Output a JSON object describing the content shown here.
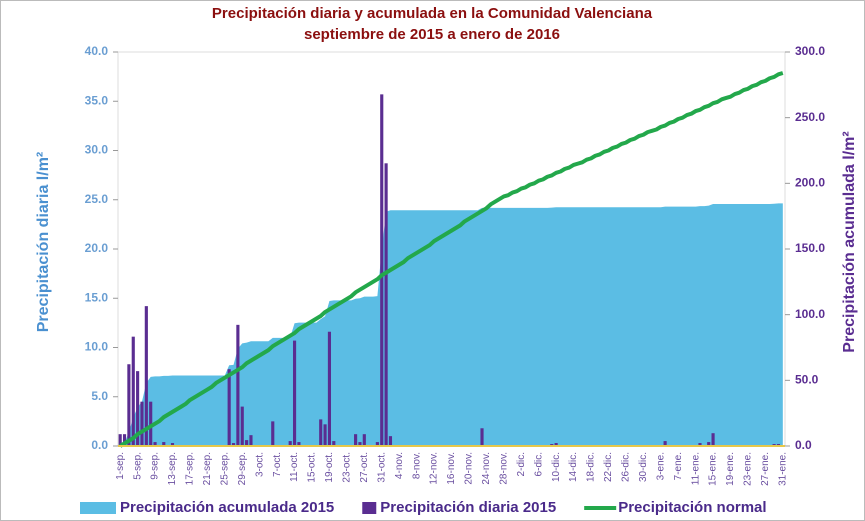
{
  "chart_data": {
    "type": "bar",
    "title": "Precipitación diaria y acumulada en la Comunidad Valenciana",
    "subtitle": "septiembre de 2015 a enero de 2016",
    "ylabel": "Precipitación diaria l/m²",
    "y2label": "Precipitación acumulada l/m²",
    "ylim": [
      0,
      40
    ],
    "yticks": [
      {
        "value": 0,
        "label": "0.0"
      },
      {
        "value": 5,
        "label": "5.0"
      },
      {
        "value": 10,
        "label": "10.0"
      },
      {
        "value": 15,
        "label": "15.0"
      },
      {
        "value": 20,
        "label": "20.0"
      },
      {
        "value": 25,
        "label": "25.0"
      },
      {
        "value": 30,
        "label": "30.0"
      },
      {
        "value": 35,
        "label": "35.0"
      },
      {
        "value": 40,
        "label": "40.0"
      }
    ],
    "y2lim": [
      0,
      300
    ],
    "y2ticks": [
      {
        "value": 0,
        "label": "0.0"
      },
      {
        "value": 50,
        "label": "50.0"
      },
      {
        "value": 100,
        "label": "100.0"
      },
      {
        "value": 150,
        "label": "150.0"
      },
      {
        "value": 200,
        "label": "200.0"
      },
      {
        "value": 250,
        "label": "250.0"
      },
      {
        "value": 300,
        "label": "300.0"
      }
    ],
    "legend": "bottom",
    "categories": [
      "1-sep.",
      null,
      null,
      null,
      "5-sep.",
      null,
      null,
      null,
      "9-sep.",
      null,
      null,
      null,
      "13-sep.",
      null,
      null,
      null,
      "17-sep.",
      null,
      null,
      null,
      "21-sep.",
      null,
      null,
      null,
      "25-sep.",
      null,
      null,
      null,
      "29-sep.",
      null,
      null,
      null,
      "3-oct.",
      null,
      null,
      null,
      "7-oct.",
      null,
      null,
      null,
      "11-oct.",
      null,
      null,
      null,
      "15-oct.",
      null,
      null,
      null,
      "19-oct.",
      null,
      null,
      null,
      "23-oct.",
      null,
      null,
      null,
      "27-oct.",
      null,
      null,
      null,
      "31-oct.",
      null,
      null,
      null,
      "4-nov.",
      null,
      null,
      null,
      "8-nov.",
      null,
      null,
      null,
      "12-nov.",
      null,
      null,
      null,
      "16-nov.",
      null,
      null,
      null,
      "20-nov.",
      null,
      null,
      null,
      "24-nov.",
      null,
      null,
      null,
      "28-nov.",
      null,
      null,
      null,
      "2-dic.",
      null,
      null,
      null,
      "6-dic.",
      null,
      null,
      null,
      "10-dic.",
      null,
      null,
      null,
      "14-dic.",
      null,
      null,
      null,
      "18-dic.",
      null,
      null,
      null,
      "22-dic.",
      null,
      null,
      null,
      "26-dic.",
      null,
      null,
      null,
      "30-dic.",
      null,
      null,
      null,
      "3-ene.",
      null,
      null,
      null,
      "7-ene.",
      null,
      null,
      null,
      "11-ene.",
      null,
      null,
      null,
      "15-ene.",
      null,
      null,
      null,
      "19-ene.",
      null,
      null,
      null,
      "23-ene.",
      null,
      null,
      null,
      "27-ene.",
      null,
      null,
      null,
      "31-ene."
    ],
    "series": [
      {
        "name": "Precipitación acumulada 2015",
        "type": "area",
        "axis": "y2",
        "color": "#5bbde4",
        "values": [
          1.2,
          2.4,
          10.7,
          21.8,
          29.4,
          33.9,
          48.1,
          52.6,
          53.0,
          53.0,
          53.4,
          53.4,
          53.7,
          53.7,
          53.7,
          53.7,
          53.7,
          53.7,
          53.7,
          53.7,
          53.7,
          53.7,
          53.7,
          53.7,
          53.7,
          61.5,
          61.8,
          74.1,
          78.1,
          78.7,
          79.8,
          79.8,
          79.8,
          79.8,
          79.8,
          82.3,
          82.3,
          82.3,
          82.3,
          82.8,
          93.5,
          93.9,
          93.9,
          93.9,
          93.9,
          93.9,
          96.6,
          98.8,
          110.4,
          110.9,
          110.9,
          110.9,
          110.9,
          110.9,
          112.1,
          112.5,
          113.7,
          113.7,
          113.7,
          114.1,
          149.8,
          178.5,
          179.5,
          179.5,
          179.5,
          179.5,
          179.5,
          179.5,
          179.5,
          179.5,
          179.5,
          179.5,
          179.5,
          179.5,
          179.5,
          179.5,
          179.5,
          179.5,
          179.5,
          179.5,
          179.5,
          179.5,
          179.5,
          181.3,
          181.3,
          181.3,
          181.3,
          181.3,
          181.3,
          181.3,
          181.3,
          181.3,
          181.3,
          181.3,
          181.3,
          181.3,
          181.3,
          181.3,
          181.3,
          181.5,
          181.8,
          181.8,
          181.8,
          181.8,
          181.8,
          181.8,
          181.8,
          181.8,
          181.8,
          181.8,
          181.8,
          181.8,
          181.8,
          181.8,
          181.8,
          181.8,
          181.8,
          181.8,
          181.8,
          181.8,
          181.8,
          181.8,
          181.8,
          181.8,
          181.8,
          182.3,
          182.3,
          182.3,
          182.3,
          182.3,
          182.3,
          182.3,
          182.3,
          182.6,
          182.6,
          183.0,
          184.3,
          184.3,
          184.3,
          184.3,
          184.3,
          184.3,
          184.3,
          184.3,
          184.3,
          184.3,
          184.3,
          184.3,
          184.3,
          184.3,
          184.5,
          184.7,
          184.7
        ]
      },
      {
        "name": "Precipitación diaria 2015",
        "type": "bar",
        "color": "#5a2d91",
        "values": [
          1.2,
          1.2,
          8.3,
          11.1,
          7.6,
          4.5,
          14.2,
          4.5,
          0.4,
          0,
          0.4,
          0,
          0.3,
          0,
          0,
          0,
          0,
          0,
          0,
          0,
          0,
          0,
          0,
          0,
          0,
          7.8,
          0.3,
          12.3,
          4.0,
          0.6,
          1.1,
          0,
          0,
          0,
          0,
          2.5,
          0,
          0,
          0,
          0.5,
          10.7,
          0.4,
          0,
          0,
          0,
          0,
          2.7,
          2.2,
          11.6,
          0.5,
          0,
          0,
          0,
          0,
          1.2,
          0.4,
          1.2,
          0,
          0,
          0.4,
          35.7,
          28.7,
          1.0,
          0,
          0,
          0,
          0,
          0,
          0,
          0,
          0,
          0,
          0,
          0,
          0,
          0,
          0,
          0,
          0,
          0,
          0,
          0,
          0,
          1.8,
          0,
          0,
          0,
          0,
          0,
          0,
          0,
          0,
          0,
          0,
          0,
          0,
          0,
          0,
          0,
          0.2,
          0.3,
          0,
          0,
          0,
          0,
          0,
          0,
          0,
          0,
          0,
          0,
          0,
          0,
          0,
          0,
          0,
          0,
          0,
          0,
          0,
          0,
          0,
          0,
          0,
          0,
          0.5,
          0,
          0,
          0,
          0,
          0,
          0,
          0,
          0.3,
          0,
          0.4,
          1.3,
          0,
          0,
          0,
          0,
          0,
          0,
          0,
          0,
          0,
          0,
          0,
          0,
          0,
          0.2,
          0.2,
          0
        ]
      },
      {
        "name": "Precipitación normal",
        "type": "line",
        "axis": "y2",
        "color": "#23a84b",
        "values": [
          0,
          2,
          4,
          6,
          9,
          11,
          13,
          15,
          17,
          19,
          22,
          24,
          26,
          28,
          30,
          32,
          35,
          37,
          39,
          41,
          43,
          45,
          48,
          50,
          52,
          54,
          56,
          58,
          60,
          63,
          65,
          67,
          69,
          71,
          73,
          76,
          78,
          80,
          82,
          84,
          86,
          89,
          91,
          93,
          95,
          97,
          99,
          102,
          104,
          106,
          108,
          110,
          112,
          114,
          117,
          119,
          121,
          123,
          125,
          127,
          130,
          132,
          134,
          136,
          138,
          140,
          143,
          145,
          147,
          149,
          151,
          153,
          156,
          158,
          160,
          162,
          164,
          166,
          168,
          171,
          173,
          175,
          177,
          179,
          181,
          184,
          186,
          188,
          190,
          191,
          193,
          194,
          196,
          197,
          199,
          200,
          202,
          203,
          205,
          206,
          208,
          209,
          211,
          212,
          214,
          215,
          216,
          218,
          219,
          221,
          222,
          224,
          225,
          227,
          228,
          230,
          231,
          233,
          234,
          236,
          237,
          239,
          240,
          241,
          243,
          244,
          246,
          247,
          249,
          250,
          252,
          253,
          255,
          256,
          258,
          259,
          261,
          262,
          264,
          265,
          266,
          268,
          269,
          271,
          272,
          274,
          275,
          277,
          278,
          280,
          281,
          283,
          284
        ]
      }
    ]
  }
}
